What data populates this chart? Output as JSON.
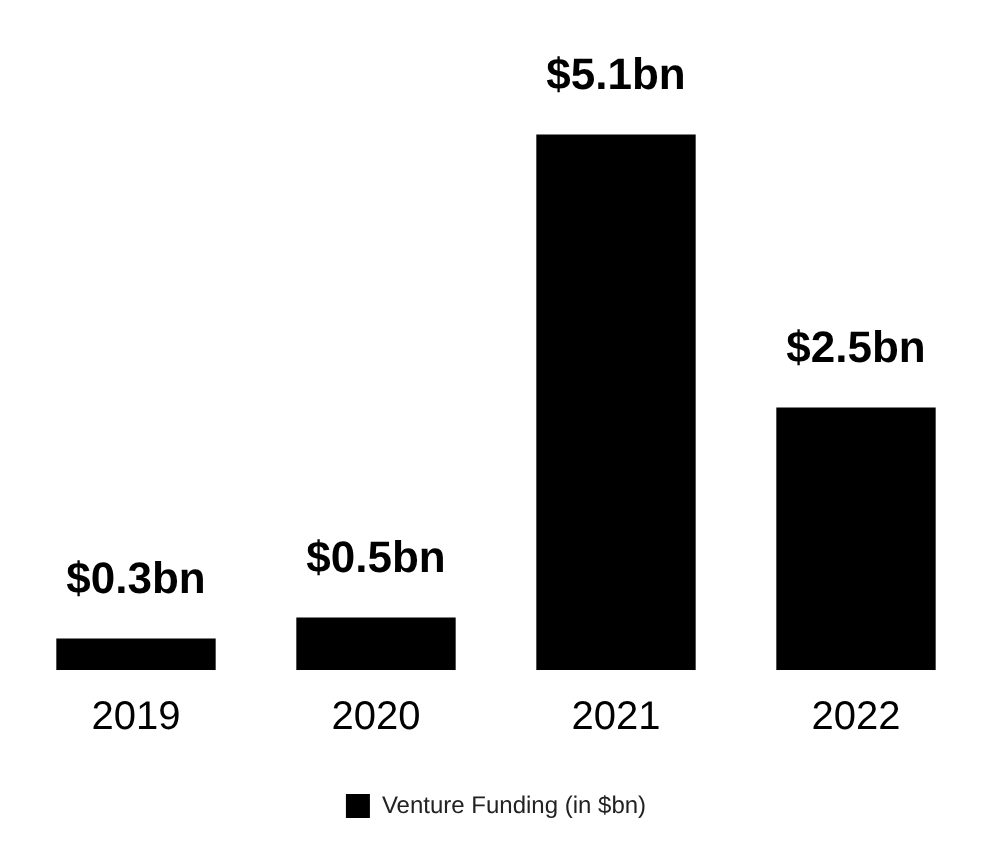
{
  "chart_data": {
    "type": "bar",
    "categories": [
      "2019",
      "2020",
      "2021",
      "2022"
    ],
    "series": [
      {
        "name": "Venture Funding (in $bn)",
        "color": "#000000",
        "values": [
          0.3,
          0.5,
          5.1,
          2.5
        ],
        "value_labels": [
          "$0.3bn",
          "$0.5bn",
          "$5.1bn",
          "$2.5bn"
        ]
      }
    ],
    "grid": false,
    "legend": "bottom",
    "tick_labels": "x"
  }
}
